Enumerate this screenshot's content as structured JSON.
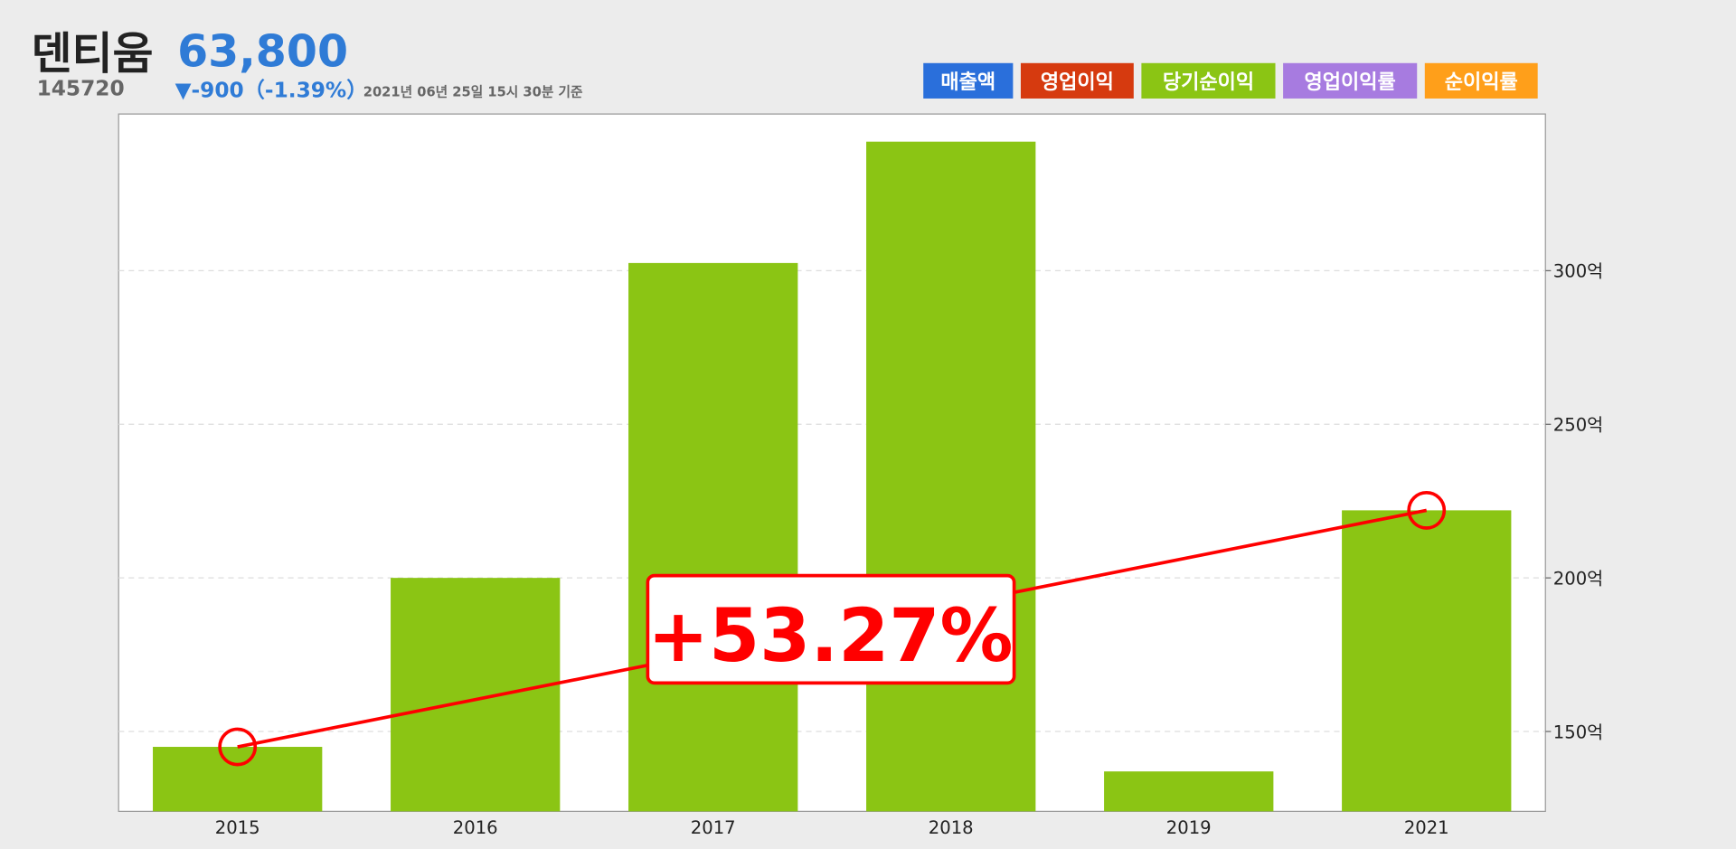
{
  "header": {
    "name": "덴티움",
    "price": "63,800",
    "code": "145720",
    "change": "▼-900（-1.39%）",
    "timestamp": "2021년 06년 25일 15시 30분 기준"
  },
  "chart_data": {
    "type": "bar",
    "categories": [
      "2015",
      "2016",
      "2017",
      "2018",
      "2019",
      "2021"
    ],
    "series": [
      {
        "name": "당기순이익",
        "color": "#8bc514",
        "values": [
          145,
          200,
          302.5,
          342,
          137,
          222
        ]
      }
    ],
    "other_series": [
      {
        "name": "매출액",
        "color": "#2a6fdb"
      },
      {
        "name": "영업이익",
        "color": "#d63a0f"
      },
      {
        "name": "영업이익률",
        "color": "#a77be0"
      },
      {
        "name": "순이익률",
        "color": "#ff9f1a"
      }
    ],
    "ylim": [
      124,
      351
    ],
    "yticks": [
      {
        "value": 150,
        "label": "150억"
      },
      {
        "value": 200,
        "label": "200억"
      },
      {
        "value": 250,
        "label": "250억"
      },
      {
        "value": 300,
        "label": "300억"
      }
    ],
    "grid": true,
    "annotation": {
      "text": "+53.27%",
      "color": "#ff0000"
    }
  }
}
